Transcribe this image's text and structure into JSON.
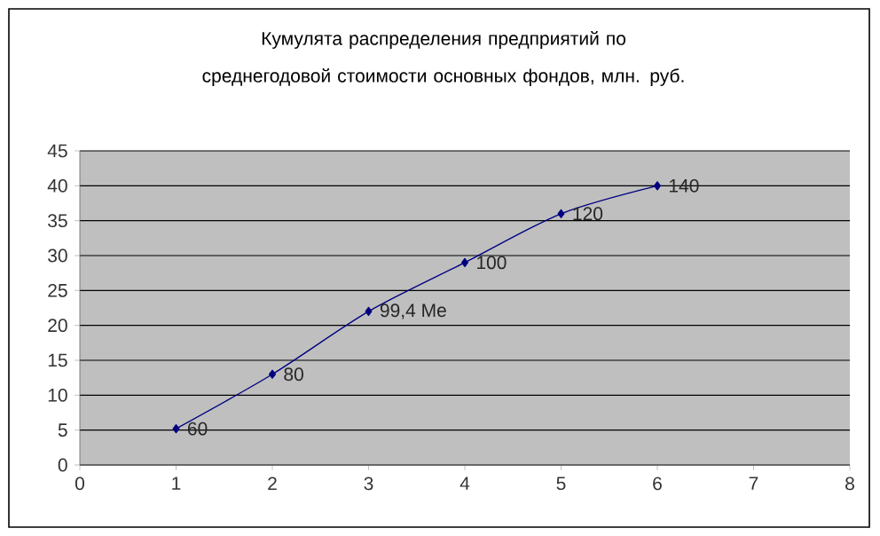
{
  "chart_data": {
    "type": "line",
    "title": "Кумулята распределения предприятий по среднегодовой стоимости основных фондов, млн. руб.",
    "x": [
      1,
      2,
      3,
      4,
      5,
      6
    ],
    "series": [
      {
        "color": "#000080",
        "values": [
          5.2,
          13,
          22,
          29,
          36,
          40
        ]
      }
    ],
    "annotations": [
      {
        "text": "60",
        "x": 1,
        "y": 5.2
      },
      {
        "text": "80",
        "x": 2,
        "y": 13
      },
      {
        "text": "99,4 Me",
        "x": 3,
        "y": 22
      },
      {
        "text": "100",
        "x": 4,
        "y": 29
      },
      {
        "text": "120",
        "x": 5,
        "y": 36
      },
      {
        "text": "140",
        "x": 6,
        "y": 40
      }
    ],
    "xlim": [
      0,
      8
    ],
    "xticks": [
      0,
      1,
      2,
      3,
      4,
      5,
      6,
      7,
      8
    ],
    "ylim": [
      0,
      45
    ],
    "yticks": [
      0,
      5,
      10,
      15,
      20,
      25,
      30,
      35,
      40,
      45
    ],
    "grid": "y",
    "marker": "diamond",
    "line_style": "solid"
  }
}
